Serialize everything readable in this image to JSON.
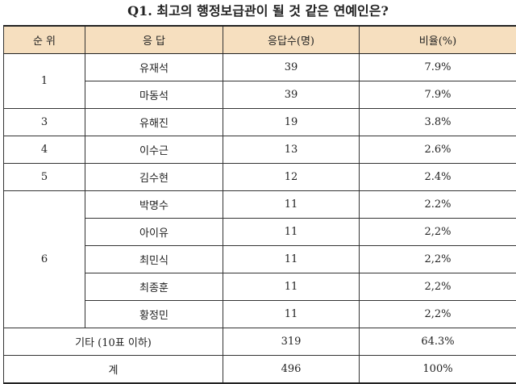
{
  "title": "Q1. 최고의 행정보급관이 될 것 같은 연예인은?",
  "headers": [
    "순 위",
    "응 답",
    "응답수(명)",
    "비율(%)"
  ],
  "rows": [
    {
      "rank": "1",
      "name": "유재석",
      "count": "39",
      "ratio": "7.9%"
    },
    {
      "rank": "",
      "name": "마동석",
      "count": "39",
      "ratio": "7.9%"
    },
    {
      "rank": "3",
      "name": "유해진",
      "count": "19",
      "ratio": "3.8%"
    },
    {
      "rank": "4",
      "name": "이수근",
      "count": "13",
      "ratio": "2.6%"
    },
    {
      "rank": "5",
      "name": "김수현",
      "count": "12",
      "ratio": "2.4%"
    },
    {
      "rank": "6",
      "name": "박명수",
      "count": "11",
      "ratio": "2.2%"
    },
    {
      "rank": "",
      "name": "아이유",
      "count": "11",
      "ratio": "2,2%"
    },
    {
      "rank": "",
      "name": "최민식",
      "count": "11",
      "ratio": "2,2%"
    },
    {
      "rank": "",
      "name": "최종훈",
      "count": "11",
      "ratio": "2,2%"
    },
    {
      "rank": "",
      "name": "황정민",
      "count": "11",
      "ratio": "2,2%"
    }
  ],
  "others": {
    "label": "기타 (10표 이하)",
    "count": "319",
    "ratio": "64.3%"
  },
  "total": {
    "label": "계",
    "count": "496",
    "ratio": "100%"
  },
  "colors": {
    "header_bg": "#f6dfbf",
    "border": "#333333"
  }
}
